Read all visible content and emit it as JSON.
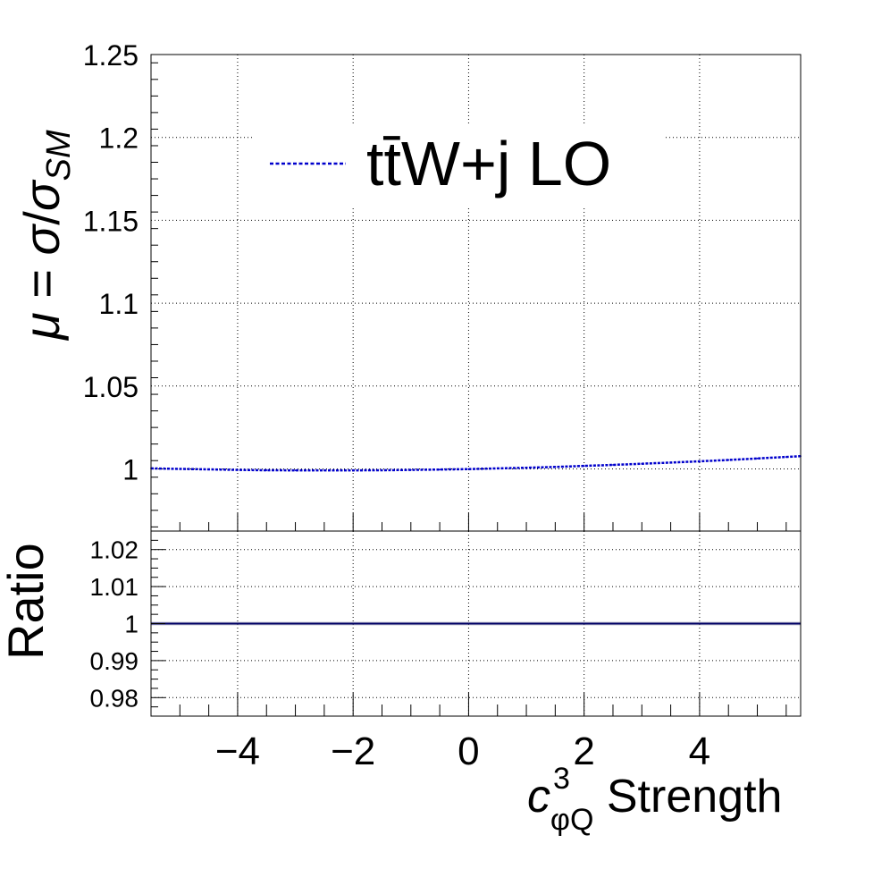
{
  "chart_data": [
    {
      "type": "line",
      "panel": "top",
      "ylabel_parts": {
        "mu": "μ",
        "eq": " = ",
        "sigma": "σ",
        "slash": "/",
        "sigma2": "σ",
        "sub": "SM"
      },
      "xlim": [
        -5.5,
        5.75
      ],
      "ylim": [
        0.9625,
        1.25
      ],
      "xticks": [
        -4,
        -2,
        0,
        2,
        4
      ],
      "yticks": [
        1.0,
        1.05,
        1.1,
        1.15,
        1.2,
        1.25
      ],
      "ytick_labels": [
        "1",
        "1.05",
        "1.1",
        "1.15",
        "1.2",
        "1.25"
      ],
      "grid": true,
      "legend": {
        "placement": "top",
        "label": "tt̄W+j LO"
      },
      "series": [
        {
          "name": "tt̄W+j LO",
          "color": "#0000cc",
          "style": "dotted",
          "x": [
            -5.5,
            -5.0,
            -4.5,
            -4.0,
            -3.5,
            -3.0,
            -2.5,
            -2.0,
            -1.5,
            -1.0,
            -0.5,
            0.0,
            0.5,
            1.0,
            1.5,
            2.0,
            2.5,
            3.0,
            3.5,
            4.0,
            4.5,
            5.0,
            5.5,
            5.75
          ],
          "y": [
            1.0003,
            1.0,
            0.9997,
            0.9994,
            0.9992,
            0.9991,
            0.9991,
            0.9991,
            0.9992,
            0.9994,
            0.9996,
            0.9999,
            1.0003,
            1.0007,
            1.0012,
            1.0018,
            1.0024,
            1.0031,
            1.0038,
            1.0046,
            1.0054,
            1.0063,
            1.0072,
            1.0077
          ]
        }
      ]
    },
    {
      "type": "line",
      "panel": "bottom",
      "ylabel": "Ratio",
      "xlabel_parts": {
        "c": "c",
        "sup": "3",
        "sub": "φQ",
        "rest": " Strength"
      },
      "xlim": [
        -5.5,
        5.75
      ],
      "ylim": [
        0.975,
        1.025
      ],
      "xticks": [
        -4,
        -2,
        0,
        2,
        4
      ],
      "xtick_labels": [
        "−4",
        "−2",
        "0",
        "2",
        "4"
      ],
      "yticks": [
        0.98,
        0.99,
        1.0,
        1.01,
        1.02
      ],
      "ytick_labels": [
        "0.98",
        "0.99",
        "1",
        "1.01",
        "1.02"
      ],
      "grid": true,
      "series": [
        {
          "color": "#000066",
          "style": "solid",
          "x": [
            -5.5,
            5.75
          ],
          "y": [
            1.0,
            1.0
          ]
        }
      ]
    }
  ],
  "colors": {
    "series": "#0000cc",
    "ratio_line": "#000066",
    "ratio_band": "#9999aa"
  }
}
